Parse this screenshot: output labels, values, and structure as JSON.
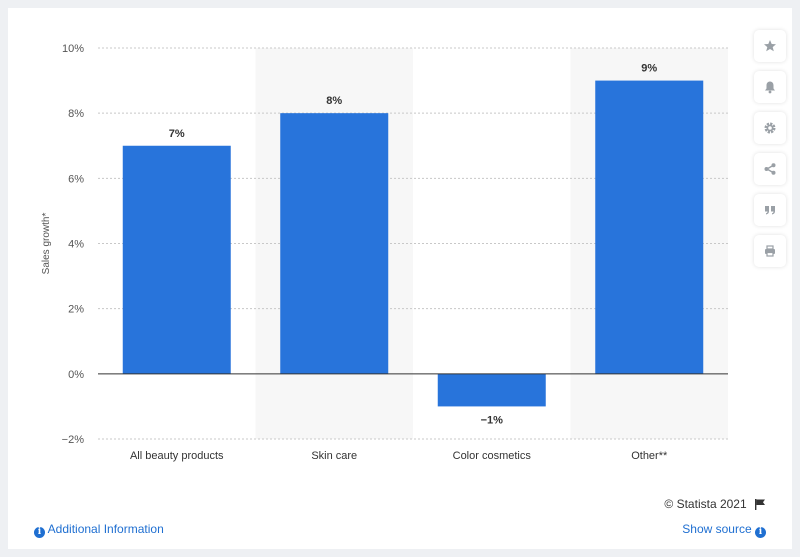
{
  "chart_data": {
    "type": "bar",
    "categories": [
      "All beauty products",
      "Skin care",
      "Color cosmetics",
      "Other**"
    ],
    "values": [
      7,
      8,
      -1,
      9
    ],
    "value_labels": [
      "7%",
      "8%",
      "−1%",
      "9%"
    ],
    "ylabel": "Sales growth*",
    "ylim": [
      -2,
      10
    ],
    "yticks": [
      -2,
      0,
      2,
      4,
      6,
      8,
      10
    ],
    "ytick_labels": [
      "−2%",
      "0%",
      "2%",
      "4%",
      "6%",
      "8%",
      "10%"
    ],
    "grid": true,
    "legend": "none",
    "bar_color": "#2874db"
  },
  "footer": {
    "copyright": "© Statista 2021",
    "additional_info": "Additional Information",
    "show_source": "Show source"
  },
  "side_buttons": [
    {
      "icon": "star-icon"
    },
    {
      "icon": "bell-icon"
    },
    {
      "icon": "gear-icon"
    },
    {
      "icon": "share-icon"
    },
    {
      "icon": "quote-icon"
    },
    {
      "icon": "print-icon"
    }
  ],
  "colors": {
    "bar": "#2874db",
    "link": "#1f6fd1",
    "band": "#f7f7f7"
  }
}
